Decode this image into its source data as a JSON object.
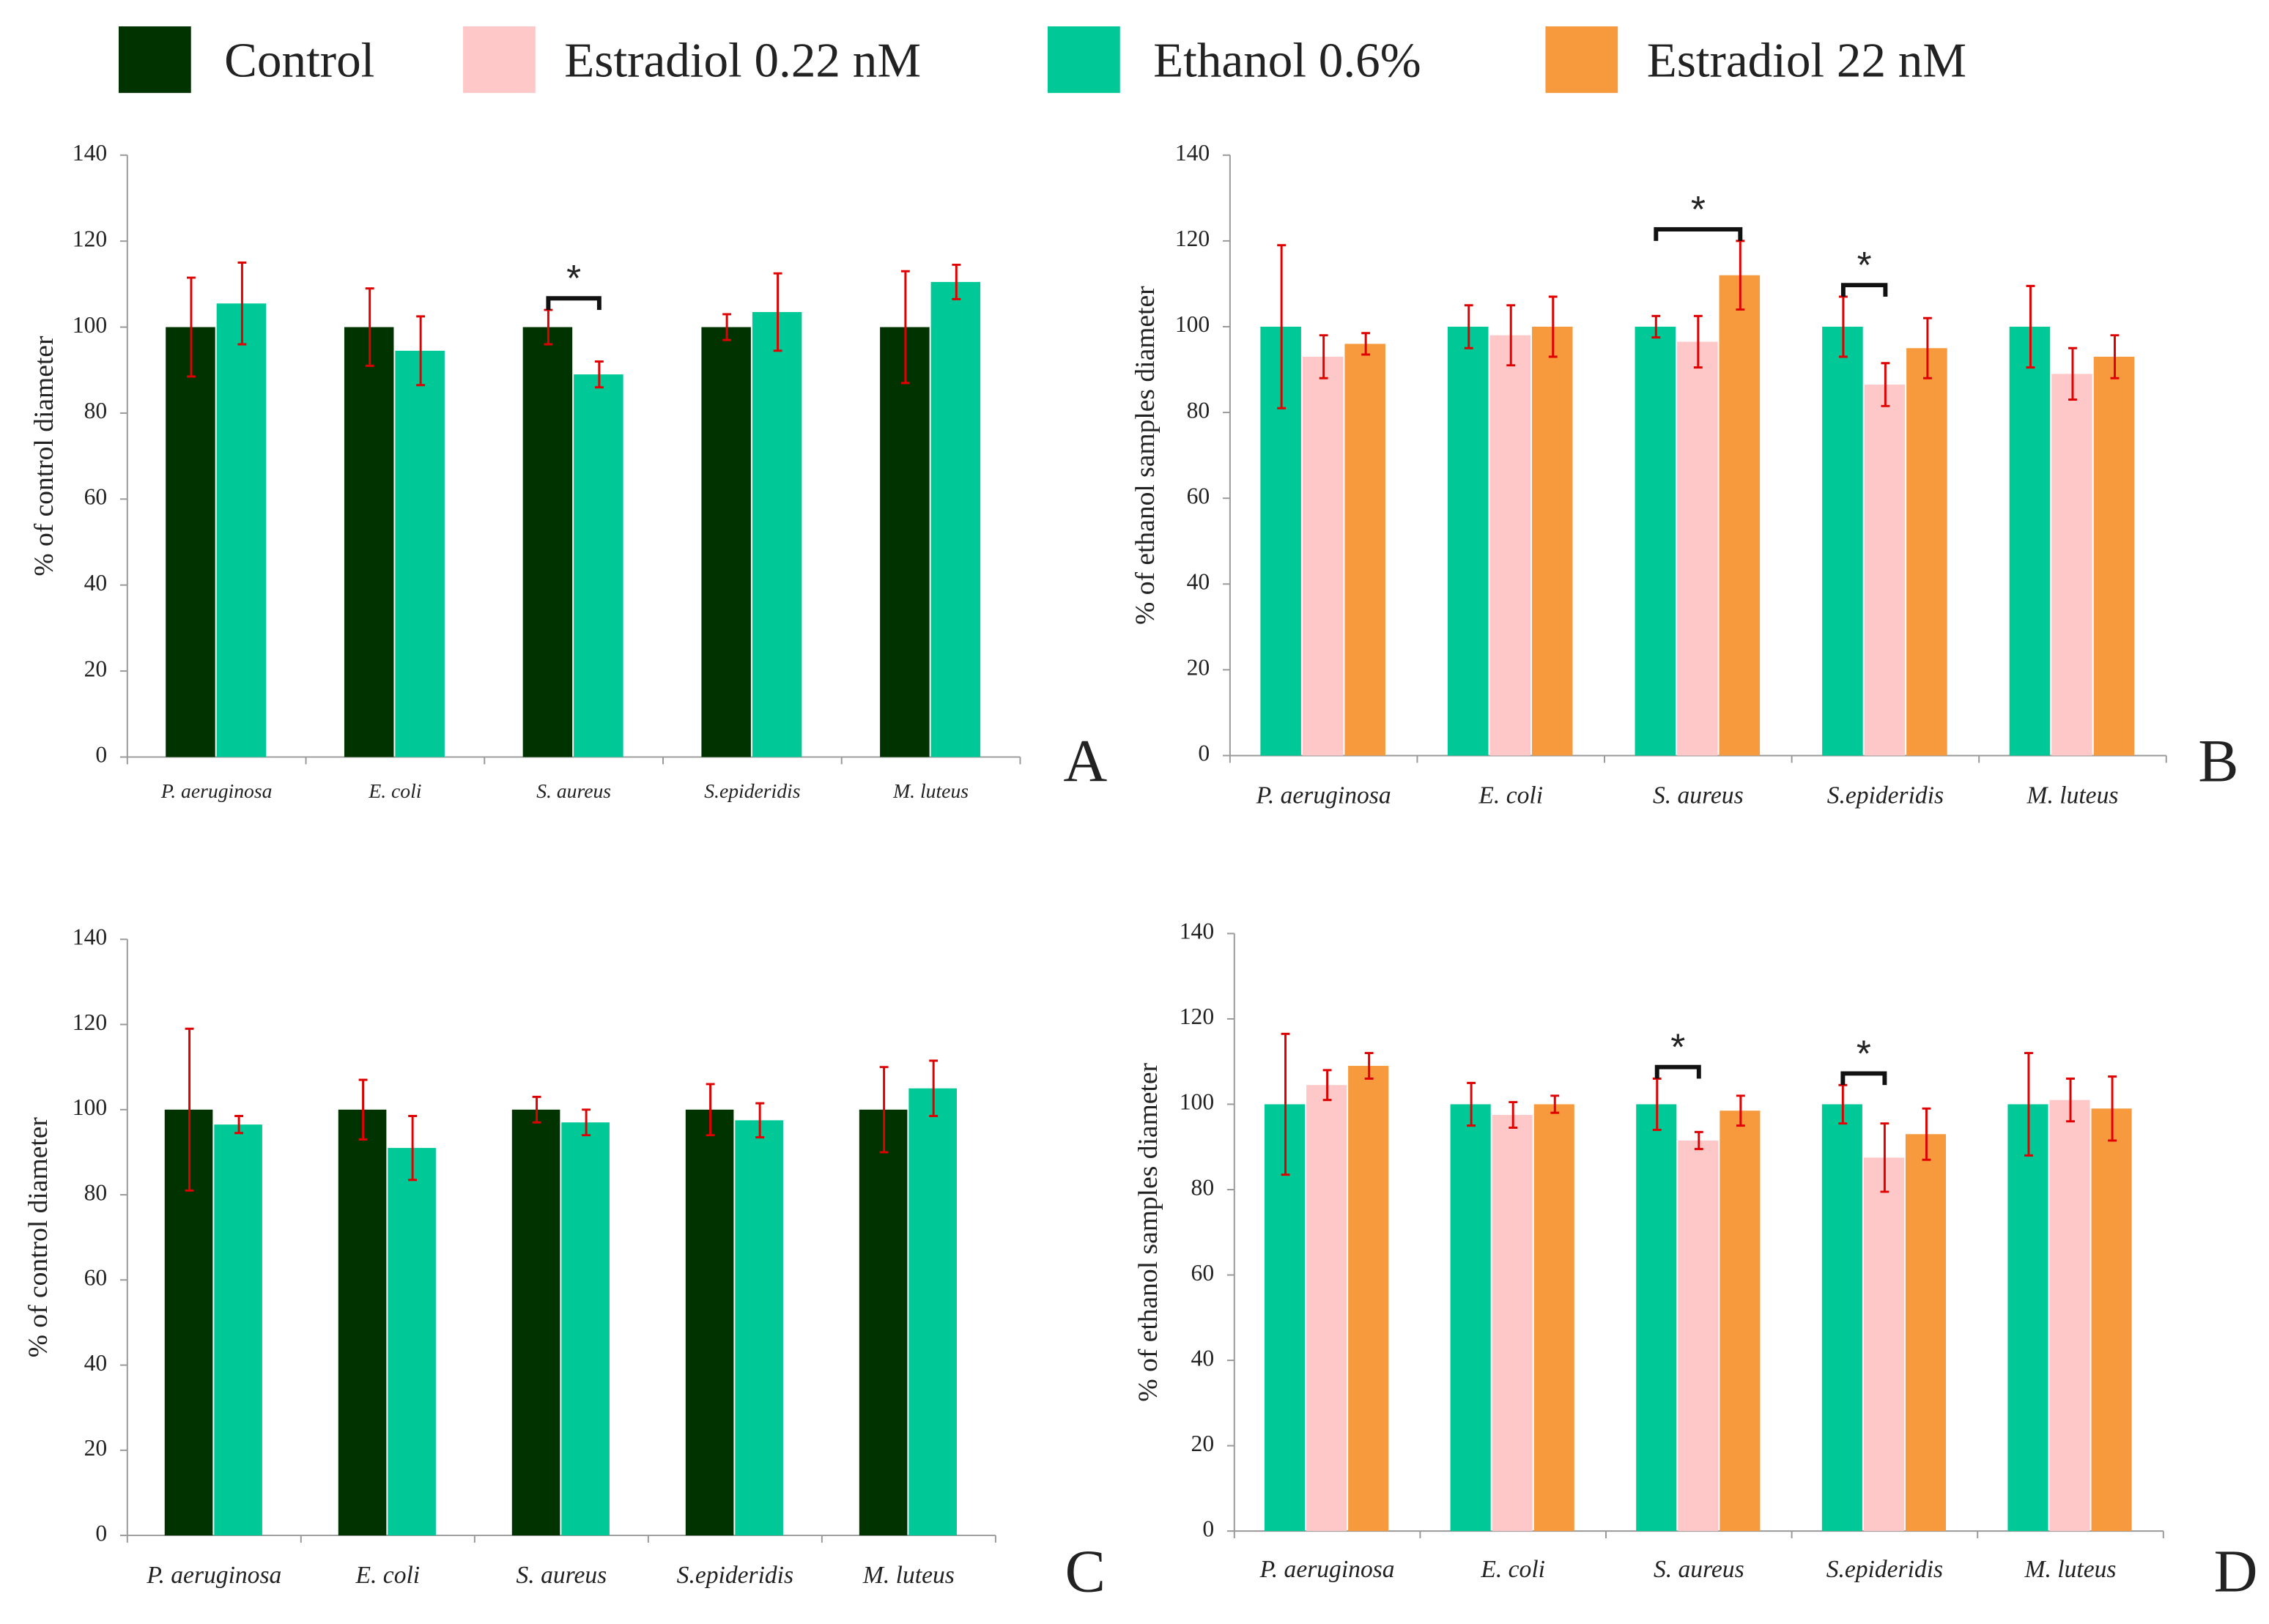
{
  "chart_data": [
    {
      "type": "bar",
      "panel_label": "A",
      "y_label": "% of control diameter",
      "categories": [
        "P. aeruginosa",
        "E. coli",
        "S. aureus",
        "S.epideridis",
        "M. luteus"
      ],
      "series": [
        {
          "name": "Control",
          "color": "#003300",
          "values": [
            100,
            100,
            100,
            100,
            100
          ],
          "errors": [
            11.5,
            9,
            4,
            3,
            13
          ]
        },
        {
          "name": "Ethanol 0.6%",
          "color": "#00c896",
          "values": [
            105.5,
            94.5,
            89,
            103.5,
            110.5
          ],
          "errors": [
            9.5,
            8,
            3,
            9,
            4
          ]
        }
      ],
      "ylim": [
        0,
        140
      ],
      "yticks": [
        0,
        20,
        40,
        60,
        80,
        100,
        120,
        140
      ],
      "significance": [
        {
          "label": "*",
          "category": "S. aureus",
          "series": [
            "Control",
            "Ethanol 0.6%"
          ]
        }
      ]
    },
    {
      "type": "bar",
      "panel_label": "B",
      "y_label": "% of ethanol samples diameter",
      "categories": [
        "P. aeruginosa",
        "E. coli",
        "S. aureus",
        "S.epideridis",
        "M. luteus"
      ],
      "series": [
        {
          "name": "Ethanol 0.6%",
          "color": "#00c896",
          "values": [
            100,
            100,
            100,
            100,
            100
          ],
          "errors": [
            19,
            5,
            2.5,
            7,
            9.5
          ]
        },
        {
          "name": "Estradiol 0.22 nM",
          "color": "#ffc8c8",
          "values": [
            93,
            98,
            96.5,
            86.5,
            89
          ],
          "errors": [
            5,
            7,
            6,
            5,
            6
          ]
        },
        {
          "name": "Estradiol 22 nM",
          "color": "#f79a3e",
          "values": [
            96,
            100,
            112,
            95,
            93
          ],
          "errors": [
            2.5,
            7,
            8,
            7,
            5
          ]
        }
      ],
      "ylim": [
        0,
        140
      ],
      "yticks": [
        0,
        20,
        40,
        60,
        80,
        100,
        120,
        140
      ],
      "significance": [
        {
          "label": "*",
          "category": "S. aureus",
          "series": [
            "Ethanol 0.6%",
            "Estradiol 22 nM"
          ]
        },
        {
          "label": "*",
          "category": "S.epideridis",
          "series": [
            "Ethanol 0.6%",
            "Estradiol 0.22 nM"
          ]
        }
      ]
    },
    {
      "type": "bar",
      "panel_label": "C",
      "y_label": "% of control diameter",
      "categories": [
        "P. aeruginosa",
        "E. coli",
        "S. aureus",
        "S.epideridis",
        "M. luteus"
      ],
      "series": [
        {
          "name": "Control",
          "color": "#003300",
          "values": [
            100,
            100,
            100,
            100,
            100
          ],
          "errors": [
            19,
            7,
            3,
            6,
            10
          ]
        },
        {
          "name": "Ethanol 0.6%",
          "color": "#00c896",
          "values": [
            96.5,
            91,
            97,
            97.5,
            105
          ],
          "errors": [
            2,
            7.5,
            3,
            4,
            6.5
          ]
        }
      ],
      "ylim": [
        0,
        140
      ],
      "yticks": [
        0,
        20,
        40,
        60,
        80,
        100,
        120,
        140
      ],
      "significance": []
    },
    {
      "type": "bar",
      "panel_label": "D",
      "y_label": "% of ethanol samples diameter",
      "categories": [
        "P. aeruginosa",
        "E. coli",
        "S. aureus",
        "S.epideridis",
        "M. luteus"
      ],
      "series": [
        {
          "name": "Ethanol 0.6%",
          "color": "#00c896",
          "values": [
            100,
            100,
            100,
            100,
            100
          ],
          "errors": [
            16.5,
            5,
            6,
            4.5,
            12
          ]
        },
        {
          "name": "Estradiol 0.22 nM",
          "color": "#ffc8c8",
          "values": [
            104.5,
            97.5,
            91.5,
            87.5,
            101
          ],
          "errors": [
            3.5,
            3,
            2,
            8,
            5
          ]
        },
        {
          "name": "Estradiol 22 nM",
          "color": "#f79a3e",
          "values": [
            109,
            100,
            98.5,
            93,
            99
          ],
          "errors": [
            3,
            2,
            3.5,
            6,
            7.5
          ]
        }
      ],
      "ylim": [
        0,
        140
      ],
      "yticks": [
        0,
        20,
        40,
        60,
        80,
        100,
        120,
        140
      ],
      "significance": [
        {
          "label": "*",
          "category": "S. aureus",
          "series": [
            "Ethanol 0.6%",
            "Estradiol 0.22 nM"
          ]
        },
        {
          "label": "*",
          "category": "S.epideridis",
          "series": [
            "Ethanol 0.6%",
            "Estradiol 0.22 nM"
          ]
        }
      ]
    }
  ]
}
